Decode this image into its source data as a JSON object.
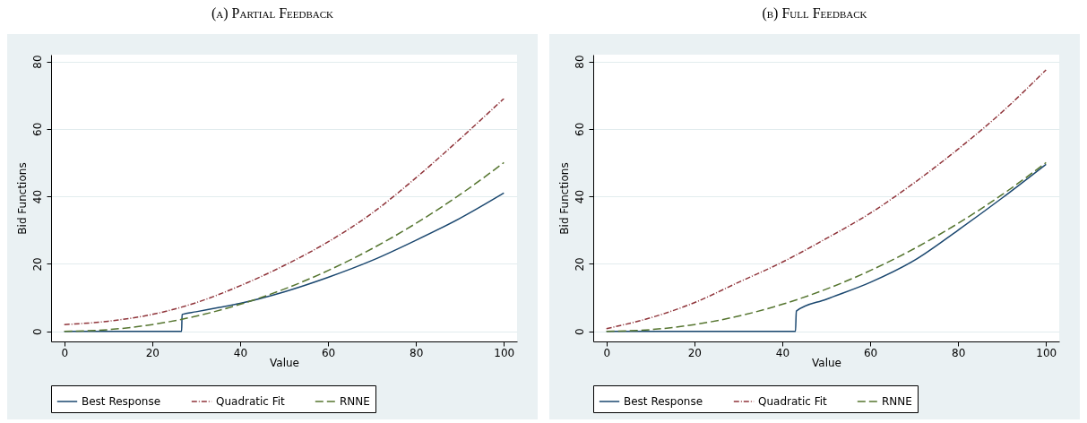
{
  "chart_data": [
    {
      "type": "line",
      "title": "(a) Partial Feedback",
      "xlabel": "Value",
      "ylabel": "Bid Functions",
      "xlim": [
        -3,
        103
      ],
      "ylim": [
        -3,
        82
      ],
      "xticks": [
        0,
        20,
        40,
        60,
        80,
        100
      ],
      "yticks": [
        0,
        20,
        40,
        60,
        80
      ],
      "grid": "y",
      "legend": "bottom",
      "series": [
        {
          "name": "Best Response",
          "color": "#1a476f",
          "line_style": "solid",
          "x": [
            0,
            26.7,
            26.8,
            30,
            35,
            40,
            50,
            60,
            70,
            80,
            90,
            100
          ],
          "values": [
            0,
            0,
            5,
            5.8,
            7,
            8.3,
            11.7,
            16,
            21,
            27,
            33.5,
            41
          ]
        },
        {
          "name": "Quadratic Fit",
          "color": "#90353b",
          "line_style": "dotted",
          "x": [
            0,
            10,
            20,
            30,
            40,
            50,
            60,
            70,
            80,
            90,
            100
          ],
          "values": [
            2,
            3,
            5,
            8.5,
            13.5,
            19.5,
            26.5,
            35,
            45.5,
            57,
            69
          ]
        },
        {
          "name": "RNNE",
          "color": "#55752f",
          "line_style": "dashed",
          "x": [
            0,
            10,
            20,
            30,
            40,
            50,
            60,
            70,
            80,
            90,
            100
          ],
          "values": [
            0,
            0.5,
            2,
            4.5,
            8,
            12.5,
            18,
            24.5,
            32,
            40.5,
            50
          ]
        }
      ]
    },
    {
      "type": "line",
      "title": "(b) Full Feedback",
      "xlabel": "Value",
      "ylabel": "Bid Functions",
      "xlim": [
        -3,
        103
      ],
      "ylim": [
        -3,
        82
      ],
      "xticks": [
        0,
        20,
        40,
        60,
        80,
        100
      ],
      "yticks": [
        0,
        20,
        40,
        60,
        80
      ],
      "grid": "y",
      "legend": "bottom",
      "series": [
        {
          "name": "Best Response",
          "color": "#1a476f",
          "line_style": "solid",
          "x": [
            0,
            43,
            43.2,
            50,
            60,
            70,
            80,
            90,
            100
          ],
          "values": [
            0,
            0,
            6,
            9.5,
            14.5,
            21,
            30,
            39.5,
            49.5
          ]
        },
        {
          "name": "Quadratic Fit",
          "color": "#90353b",
          "line_style": "dotted",
          "x": [
            0,
            10,
            20,
            30,
            40,
            50,
            60,
            70,
            80,
            90,
            100
          ],
          "values": [
            0.8,
            4,
            8.5,
            14.5,
            20.5,
            27.5,
            35,
            44,
            54,
            65,
            77.5
          ]
        },
        {
          "name": "RNNE",
          "color": "#55752f",
          "line_style": "dashed",
          "x": [
            0,
            10,
            20,
            30,
            40,
            50,
            60,
            70,
            80,
            90,
            100
          ],
          "values": [
            0,
            0.5,
            2,
            4.5,
            8,
            12.5,
            18,
            24.5,
            32,
            40.5,
            50
          ]
        }
      ]
    }
  ]
}
